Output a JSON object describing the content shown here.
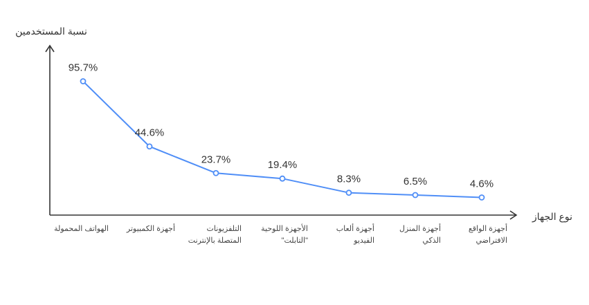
{
  "chart_data": {
    "type": "line",
    "title": "",
    "ylabel": "نسبة المستخدمين",
    "xlabel": "نوع الجهاز",
    "categories": [
      [
        "الهواتف المحمولة"
      ],
      [
        "أجهزة الكمبيوتر"
      ],
      [
        "التلفزيونات",
        "المتصلة بالإنترنت"
      ],
      [
        "الأجهزة اللوحية",
        "\"التابلت\""
      ],
      [
        "أجهزة ألعاب",
        "الفيديو"
      ],
      [
        "أجهزة المنزل",
        "الذكي"
      ],
      [
        "أجهزة الواقع",
        "الافتراضي"
      ]
    ],
    "values": [
      95.7,
      44.6,
      23.7,
      19.4,
      8.3,
      6.5,
      4.6
    ],
    "value_labels": [
      "95.7%",
      "44.6%",
      "23.7%",
      "19.4%",
      "8.3%",
      "6.5%",
      "4.6%"
    ],
    "ylim": [
      0,
      100
    ],
    "grid": false,
    "legend": "none",
    "series_color": "#4f8ef7",
    "axis_color": "#333333"
  }
}
